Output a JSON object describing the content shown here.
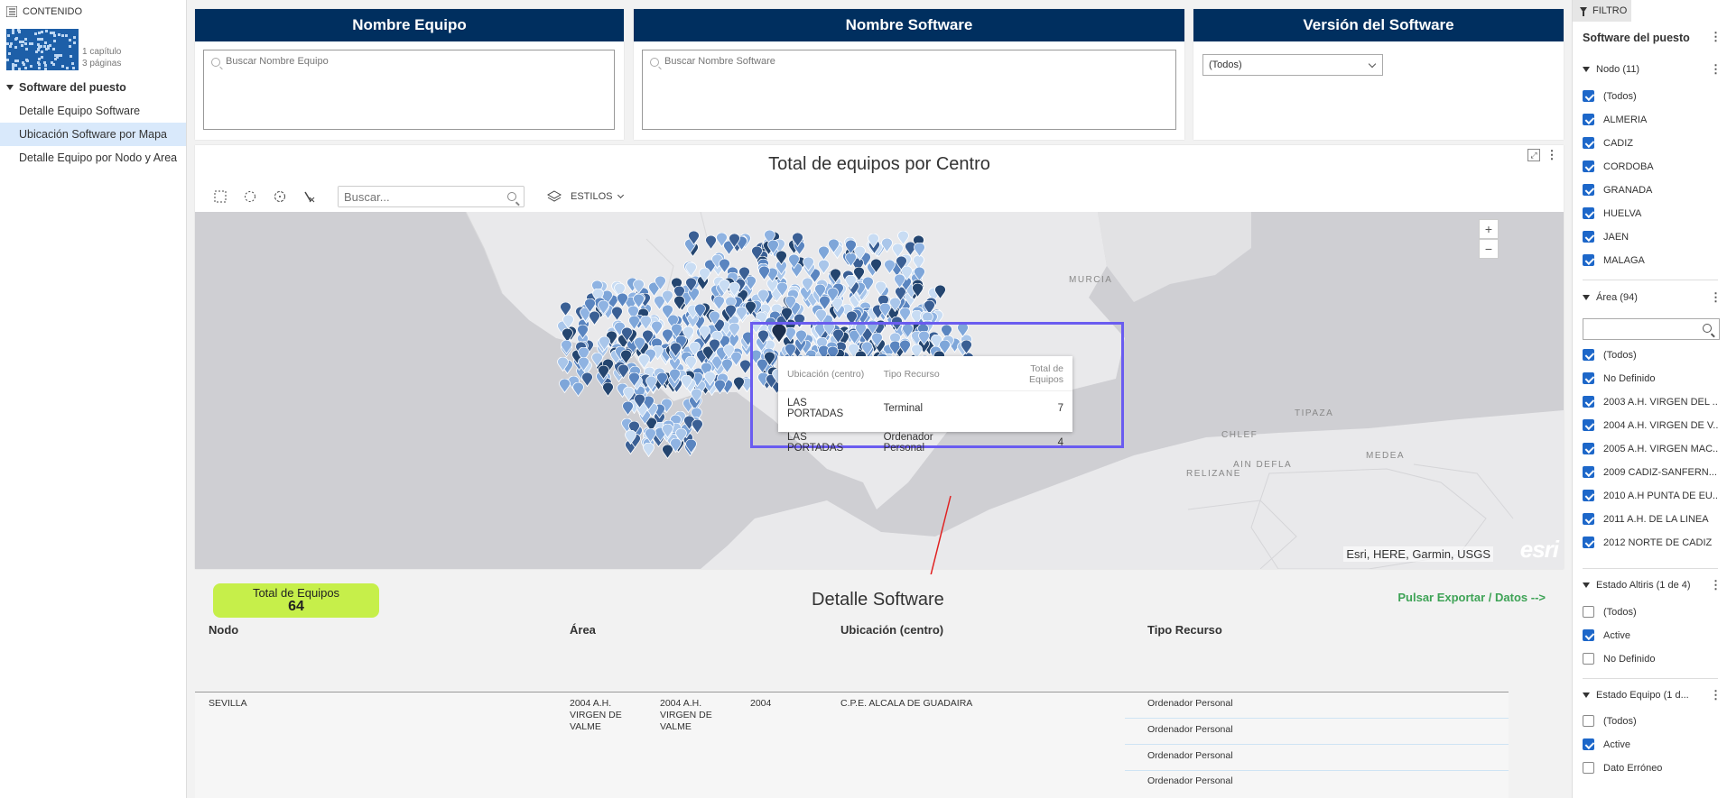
{
  "nav": {
    "header": "CONTENIDO",
    "book_chapters": "1 capítulo",
    "book_pages": "3 páginas",
    "section": "Software del puesto",
    "items": [
      {
        "label": "Detalle Equipo Software"
      },
      {
        "label": "Ubicación Software por Mapa"
      },
      {
        "label": "Detalle Equipo por Nodo y Area"
      }
    ]
  },
  "panels": {
    "equipo": {
      "title": "Nombre Equipo",
      "placeholder": "Buscar Nombre Equipo"
    },
    "software": {
      "title": "Nombre Software",
      "placeholder": "Buscar Nombre Software"
    },
    "version": {
      "title": "Versión del Software",
      "selected": "(Todos)"
    }
  },
  "map": {
    "title": "Total de equipos por Centro",
    "search_placeholder": "Buscar...",
    "styles_label": "ESTILOS",
    "zoom_in": "+",
    "zoom_out": "−",
    "attribution": "Esri, HERE, Garmin, USGS",
    "brand": "esri",
    "regions": [
      "MURCIA",
      "TIPAZA",
      "CHLEF",
      "AIN DEFLA",
      "MEDEA",
      "RELIZANE"
    ],
    "tooltip": {
      "headers": [
        "Ubicación (centro)",
        "Tipo Recurso",
        "Total de Equipos"
      ],
      "rows": [
        [
          "LAS PORTADAS",
          "Terminal",
          "7"
        ],
        [
          "LAS PORTADAS",
          "Ordenador Personal",
          "4"
        ]
      ]
    }
  },
  "detalle": {
    "total_label": "Total de Equipos",
    "total_value": "64",
    "title": "Detalle Software",
    "export": "Pulsar Exportar / Datos -->",
    "columns": [
      "Nodo",
      "Área",
      "Ubicación (centro)",
      "Tipo Recurso"
    ],
    "row": {
      "nodo": "SEVILLA",
      "area1": "2004 A.H. VIRGEN DE VALME",
      "area2": "2004 A.H. VIRGEN DE VALME",
      "code": "2004",
      "centro": "C.P.E. ALCALA DE GUADAIRA",
      "tipos": [
        "Ordenador Personal",
        "Ordenador Personal",
        "Ordenador Personal",
        "Ordenador Personal"
      ]
    }
  },
  "filter": {
    "tab": "FILTRO",
    "title": "Software del puesto",
    "nodo": {
      "header": "Nodo (11)",
      "items": [
        {
          "label": "(Todos)",
          "checked": true
        },
        {
          "label": "ALMERIA",
          "checked": true
        },
        {
          "label": "CADIZ",
          "checked": true
        },
        {
          "label": "CORDOBA",
          "checked": true
        },
        {
          "label": "GRANADA",
          "checked": true
        },
        {
          "label": "HUELVA",
          "checked": true
        },
        {
          "label": "JAEN",
          "checked": true
        },
        {
          "label": "MALAGA",
          "checked": true
        }
      ]
    },
    "area": {
      "header": "Área (94)",
      "items": [
        {
          "label": "(Todos)",
          "checked": true
        },
        {
          "label": "No Definido",
          "checked": true
        },
        {
          "label": "2003 A.H. VIRGEN DEL ...",
          "checked": true
        },
        {
          "label": "2004 A.H. VIRGEN DE V...",
          "checked": true
        },
        {
          "label": "2005 A.H. VIRGEN MAC...",
          "checked": true
        },
        {
          "label": "2009 CADIZ-SANFERN...",
          "checked": true
        },
        {
          "label": "2010 A.H PUNTA DE EU...",
          "checked": true
        },
        {
          "label": "2011 A.H. DE LA LINEA",
          "checked": true
        },
        {
          "label": "2012 NORTE DE CADIZ",
          "checked": true
        }
      ]
    },
    "altiris": {
      "header": "Estado Altiris (1 de 4)",
      "items": [
        {
          "label": "(Todos)",
          "checked": false
        },
        {
          "label": "Active",
          "checked": true
        },
        {
          "label": "No Definido",
          "checked": false
        }
      ]
    },
    "equipo": {
      "header": "Estado Equipo (1 d...",
      "items": [
        {
          "label": "(Todos)",
          "checked": false
        },
        {
          "label": "Active",
          "checked": true
        },
        {
          "label": "Dato Erróneo",
          "checked": false
        }
      ]
    }
  }
}
